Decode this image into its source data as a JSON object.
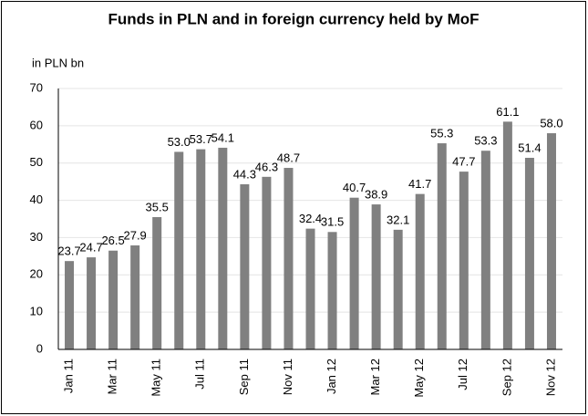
{
  "chart_data": {
    "type": "bar",
    "title": "Funds in PLN and in foreign currency held by MoF",
    "y_label": "in PLN bn",
    "categories": [
      "Jan 11",
      null,
      "Mar 11",
      null,
      "May 11",
      null,
      "Jul 11",
      null,
      "Sep 11",
      null,
      "Nov 11",
      null,
      "Jan 12",
      null,
      "Mar 12",
      null,
      "May 12",
      null,
      "Jul 12",
      null,
      "Sep 12",
      null,
      "Nov 12"
    ],
    "values": [
      23.7,
      24.7,
      26.5,
      27.9,
      35.5,
      53.0,
      53.7,
      54.1,
      44.3,
      46.3,
      48.7,
      32.4,
      31.5,
      40.7,
      38.9,
      32.1,
      41.7,
      55.3,
      47.7,
      53.3,
      61.1,
      51.4,
      58.0
    ],
    "value_labels": [
      "23.7",
      "24.7",
      "26.5",
      "27.9",
      "35.5",
      "53.0",
      "53.7",
      "54.1",
      "44.3",
      "46.3",
      "48.7",
      "32.4",
      "31.5",
      "40.7",
      "38.9",
      "32.1",
      "41.7",
      "55.3",
      "47.7",
      "53.3",
      "61.1",
      "51.4",
      "58.0"
    ],
    "color": "#808080",
    "ylim": [
      0,
      70
    ],
    "yticks": [
      0,
      10,
      20,
      30,
      40,
      50,
      60,
      70
    ],
    "grid": true
  }
}
